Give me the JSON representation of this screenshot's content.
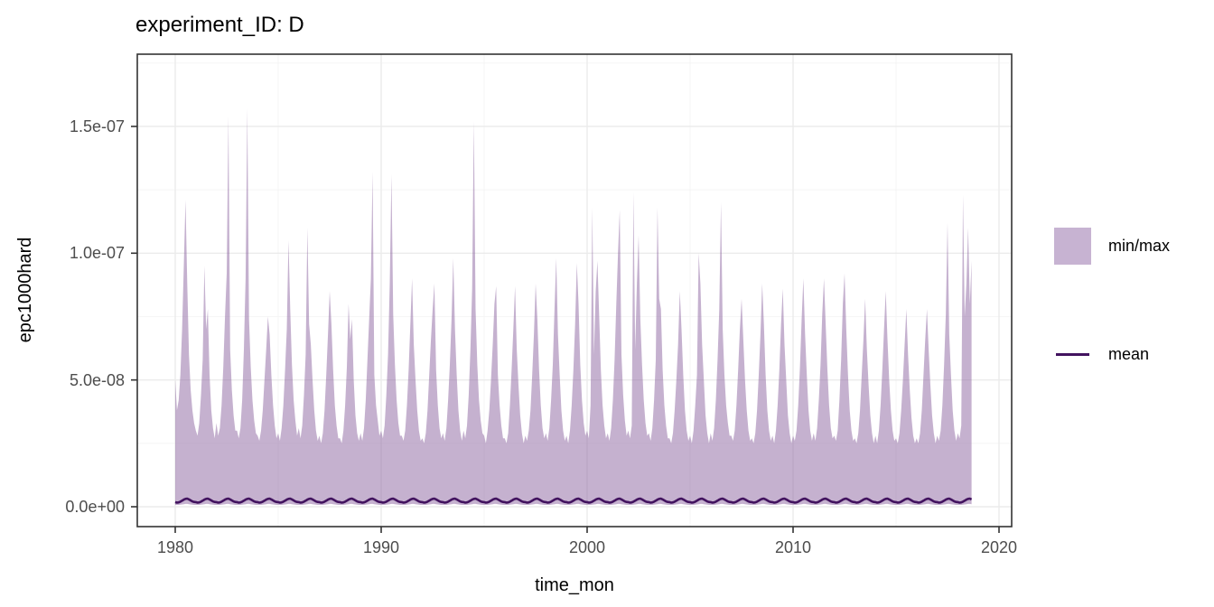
{
  "figure": {
    "title": "experiment_ID: D"
  },
  "axes": {
    "x_label": "time_mon",
    "y_label": "epc1000hard",
    "x_tick_labels": [
      "1980",
      "1990",
      "2000",
      "2010",
      "2020"
    ],
    "y_tick_labels": [
      "0.0e+00",
      "5.0e-08",
      "1.0e-07",
      "1.5e-07"
    ]
  },
  "legend": {
    "entries": [
      {
        "label": "min/max",
        "type": "fill"
      },
      {
        "label": "mean",
        "type": "line"
      }
    ]
  },
  "colors": {
    "ribbon_fill": "rgba(140,100,160,0.5)",
    "legend_swatch": "#c7b3d2",
    "mean_line": "#42135f",
    "grid_major": "#ebebeb",
    "grid_minor": "#f4f4f4",
    "panel_border": "#333333",
    "tick_mark": "#333333",
    "tick_label": "#4d4d4d",
    "panel_bg": "#ffffff"
  },
  "chart_data": {
    "type": "area",
    "subtype": "min-max ribbon with mean line, monthly time series",
    "title": "experiment_ID: D",
    "xlabel": "time_mon",
    "ylabel": "epc1000hard",
    "legend_position": "right",
    "grid": "on",
    "x_ticks": [
      1980,
      1990,
      2000,
      2010,
      2020
    ],
    "x_minor_ticks": [
      1985,
      1995,
      2005,
      2015
    ],
    "y_ticks_e9": [
      0,
      50,
      100,
      150
    ],
    "y_tick_labels": [
      "0.0e+00",
      "5.0e-08",
      "1.0e-07",
      "1.5e-07"
    ],
    "y_minor_ticks_e9": [
      25,
      75,
      125,
      175
    ],
    "xlim": [
      1978.16,
      2020.6
    ],
    "ylim_e9": [
      -7.8,
      178.4
    ],
    "x_start_year": 1980,
    "points_per_year": 12,
    "units": "values in 1e-9 (e.g. 50 = 5.0e-08)",
    "series": [
      {
        "name": "min/max",
        "type": "ribbon"
      },
      {
        "name": "mean",
        "type": "line"
      }
    ],
    "max_e9": [
      50,
      38,
      42,
      52,
      70,
      95,
      121,
      88,
      60,
      46,
      38,
      33,
      30,
      28,
      33,
      44,
      58,
      95,
      70,
      78,
      52,
      38,
      31,
      27,
      33,
      28,
      31,
      40,
      55,
      75,
      92,
      154,
      62,
      46,
      36,
      30,
      30,
      27,
      31,
      42,
      62,
      90,
      157,
      74,
      55,
      42,
      34,
      29,
      28,
      26,
      30,
      38,
      50,
      62,
      75,
      68,
      52,
      40,
      32,
      27,
      29,
      26,
      31,
      40,
      54,
      70,
      105,
      78,
      56,
      42,
      34,
      28,
      31,
      27,
      32,
      44,
      60,
      110,
      72,
      64,
      50,
      38,
      30,
      26,
      28,
      25,
      29,
      38,
      52,
      68,
      85,
      72,
      54,
      40,
      32,
      27,
      27,
      25,
      30,
      40,
      55,
      80,
      66,
      74,
      50,
      36,
      29,
      26,
      29,
      26,
      31,
      42,
      58,
      74,
      90,
      132,
      52,
      40,
      34,
      28,
      30,
      27,
      32,
      44,
      60,
      88,
      131,
      76,
      56,
      42,
      33,
      28,
      28,
      26,
      30,
      40,
      54,
      72,
      90,
      64,
      50,
      38,
      30,
      26,
      27,
      25,
      29,
      38,
      52,
      66,
      78,
      88,
      54,
      40,
      31,
      27,
      29,
      26,
      31,
      42,
      56,
      74,
      98,
      70,
      52,
      38,
      30,
      26,
      30,
      27,
      32,
      44,
      62,
      86,
      152,
      78,
      56,
      42,
      34,
      29,
      28,
      25,
      30,
      38,
      50,
      64,
      80,
      87,
      52,
      40,
      32,
      27,
      27,
      25,
      29,
      40,
      54,
      70,
      87,
      62,
      48,
      36,
      29,
      25,
      28,
      26,
      30,
      38,
      52,
      68,
      88,
      74,
      54,
      40,
      31,
      27,
      29,
      26,
      31,
      42,
      56,
      78,
      98,
      68,
      52,
      38,
      30,
      26,
      28,
      25,
      30,
      40,
      54,
      72,
      96,
      80,
      56,
      42,
      33,
      28,
      30,
      27,
      40,
      118,
      60,
      85,
      97,
      76,
      54,
      40,
      32,
      27,
      29,
      26,
      31,
      42,
      58,
      80,
      100,
      117,
      60,
      44,
      34,
      28,
      30,
      27,
      32,
      124,
      62,
      88,
      107,
      74,
      56,
      42,
      33,
      28,
      29,
      26,
      31,
      42,
      58,
      118,
      82,
      78,
      54,
      40,
      32,
      27,
      27,
      25,
      29,
      38,
      50,
      64,
      85,
      70,
      52,
      38,
      30,
      26,
      28,
      25,
      30,
      40,
      52,
      100,
      88,
      64,
      50,
      36,
      29,
      25,
      29,
      26,
      31,
      42,
      58,
      78,
      120,
      70,
      52,
      40,
      33,
      28,
      28,
      26,
      30,
      40,
      54,
      70,
      82,
      66,
      50,
      38,
      30,
      26,
      27,
      25,
      29,
      38,
      52,
      68,
      88,
      72,
      52,
      38,
      30,
      26,
      28,
      25,
      30,
      40,
      54,
      72,
      86,
      64,
      50,
      36,
      29,
      25,
      28,
      26,
      30,
      40,
      55,
      74,
      90,
      68,
      52,
      38,
      30,
      26,
      29,
      26,
      31,
      42,
      56,
      76,
      90,
      72,
      54,
      40,
      31,
      27,
      28,
      26,
      30,
      42,
      58,
      80,
      92,
      70,
      52,
      38,
      30,
      26,
      27,
      25,
      29,
      38,
      52,
      66,
      82,
      62,
      48,
      36,
      29,
      25,
      28,
      25,
      30,
      40,
      54,
      70,
      85,
      66,
      50,
      38,
      30,
      26,
      27,
      25,
      29,
      38,
      50,
      64,
      78,
      60,
      46,
      35,
      28,
      25,
      27,
      25,
      29,
      38,
      52,
      66,
      78,
      62,
      48,
      36,
      29,
      25,
      28,
      26,
      30,
      40,
      56,
      76,
      112,
      68,
      52,
      38,
      30,
      26,
      29,
      27,
      32,
      123,
      75,
      88,
      110,
      80,
      97
    ],
    "min_profile_e9": [
      0.7,
      0.7,
      0.7,
      0.8,
      0.9,
      1.0,
      1.1,
      1.1,
      1.0,
      0.9,
      0.8,
      0.7
    ],
    "mean_profile_e9": [
      1.8,
      1.6,
      1.7,
      2.0,
      2.4,
      2.8,
      3.1,
      3.2,
      2.9,
      2.5,
      2.1,
      1.9
    ]
  }
}
